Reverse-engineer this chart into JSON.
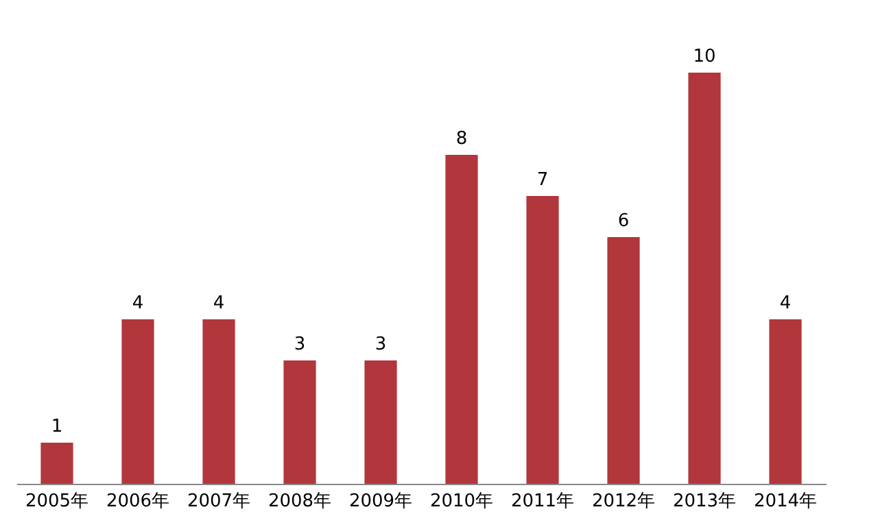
{
  "chart_data": {
    "type": "bar",
    "categories": [
      "2005年",
      "2006年",
      "2007年",
      "2008年",
      "2009年",
      "2010年",
      "2011年",
      "2012年",
      "2013年",
      "2014年"
    ],
    "values": [
      1,
      4,
      4,
      3,
      3,
      8,
      7,
      6,
      10,
      4
    ],
    "color": "#b2373c",
    "data_labels": true
  }
}
